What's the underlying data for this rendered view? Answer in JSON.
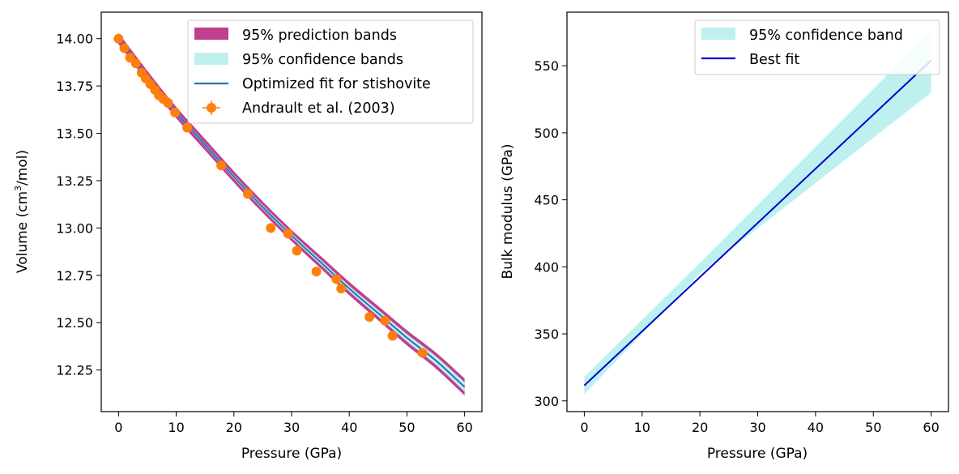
{
  "chart_data": [
    {
      "type": "line",
      "xlabel": "Pressure (GPa)",
      "ylabel_parts": {
        "before": "Volume (cm",
        "sup": "3",
        "after": "/mol)"
      },
      "xlim": [
        -3,
        63
      ],
      "ylim": [
        12.03,
        14.14
      ],
      "xticks": [
        0,
        10,
        20,
        30,
        40,
        50,
        60
      ],
      "xtick_labels": [
        "0",
        "10",
        "20",
        "30",
        "40",
        "50",
        "60"
      ],
      "yticks": [
        12.25,
        12.5,
        12.75,
        13.0,
        13.25,
        13.5,
        13.75,
        14.0
      ],
      "ytick_labels": [
        "12.25",
        "12.50",
        "12.75",
        "13.00",
        "13.25",
        "13.50",
        "13.75",
        "14.00"
      ],
      "legend_position": "top-right",
      "legend": [
        "95% prediction bands",
        "95% confidence bands",
        "Optimized fit for stishovite",
        "Andrault et al. (2003)"
      ],
      "colors": {
        "prediction": "#c03f8e",
        "confidence": "#bff0f0",
        "fit": "#1f77b4",
        "data": "#ff7f0e"
      },
      "fit_curve": {
        "x": [
          0,
          5,
          10,
          15,
          20,
          25,
          30,
          35,
          40,
          45,
          50,
          55,
          60
        ],
        "y": [
          14.0,
          13.8,
          13.61,
          13.44,
          13.27,
          13.11,
          12.96,
          12.82,
          12.68,
          12.55,
          12.42,
          12.3,
          12.16
        ]
      },
      "prediction_half_width": {
        "x": [
          0,
          10,
          20,
          30,
          40,
          50,
          60
        ],
        "y": [
          0.03,
          0.03,
          0.03,
          0.03,
          0.035,
          0.04,
          0.045
        ]
      },
      "confidence_half_width": {
        "x": [
          0,
          10,
          20,
          30,
          40,
          50,
          60
        ],
        "y": [
          0.006,
          0.008,
          0.01,
          0.012,
          0.015,
          0.02,
          0.025
        ]
      },
      "series": [
        {
          "name": "Andrault et al. (2003)",
          "x": [
            0,
            1,
            2,
            3,
            4,
            4.7,
            5.5,
            6.3,
            7,
            7.8,
            8.6,
            9.8,
            11.9,
            17.8,
            22.4,
            26.4,
            29.4,
            30.9,
            34.3,
            37.8,
            38.6,
            43.5,
            46.2,
            47.5,
            52.7
          ],
          "y": [
            14.0,
            13.95,
            13.9,
            13.87,
            13.82,
            13.79,
            13.76,
            13.73,
            13.7,
            13.68,
            13.66,
            13.61,
            13.53,
            13.33,
            13.18,
            13.0,
            12.97,
            12.88,
            12.77,
            12.73,
            12.68,
            12.53,
            12.51,
            12.43,
            12.34
          ],
          "xerr": [
            0,
            0,
            0,
            0,
            0,
            0,
            0,
            0,
            0,
            0,
            0,
            0,
            0,
            0,
            0,
            0,
            0,
            0,
            0,
            0.3,
            0.3,
            0.6,
            0.3,
            0.6,
            1.0
          ]
        }
      ]
    },
    {
      "type": "line",
      "xlabel": "Pressure (GPa)",
      "ylabel": "Bulk modulus (GPa)",
      "xlim": [
        -3,
        63
      ],
      "ylim": [
        292,
        590
      ],
      "xticks": [
        0,
        10,
        20,
        30,
        40,
        50,
        60
      ],
      "xtick_labels": [
        "0",
        "10",
        "20",
        "30",
        "40",
        "50",
        "60"
      ],
      "yticks": [
        300,
        350,
        400,
        450,
        500,
        550
      ],
      "ytick_labels": [
        "300",
        "350",
        "400",
        "450",
        "500",
        "550"
      ],
      "legend_position": "top-right",
      "legend": [
        "95% confidence band",
        "Best fit"
      ],
      "colors": {
        "confidence": "#bff0f0",
        "fit": "#0000cd"
      },
      "series": [
        {
          "name": "Best fit",
          "x": [
            0,
            60
          ],
          "y": [
            311.5,
            554
          ]
        }
      ],
      "confidence_band": {
        "x": [
          0,
          20,
          60
        ],
        "lower": [
          305,
          395,
          530
        ],
        "upper": [
          318,
          403,
          576
        ]
      }
    }
  ]
}
